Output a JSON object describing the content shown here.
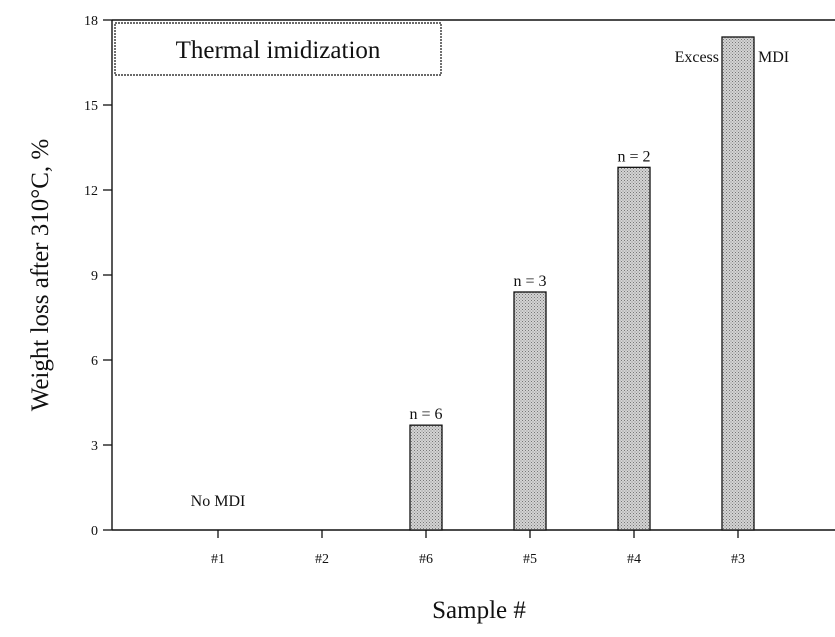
{
  "chart_data": {
    "type": "bar",
    "title": "Thermal imidization",
    "xlabel": "Sample #",
    "ylabel": "Weight loss after 310°C,  %",
    "categories": [
      "#1",
      "#2",
      "#6",
      "#5",
      "#4",
      "#3"
    ],
    "values": [
      0,
      0,
      3.7,
      8.4,
      12.8,
      17.4
    ],
    "ylim": [
      0,
      18
    ],
    "yticks": [
      "0",
      "3",
      "6",
      "9",
      "12",
      "15",
      "18"
    ],
    "grid": false,
    "bar_fill": "#c9c9c9",
    "annotations": [
      {
        "text": "No MDI",
        "category": "#1",
        "value": 0
      },
      {
        "text": "n = 6",
        "category": "#6",
        "value": 3.7
      },
      {
        "text": "n = 3",
        "category": "#5",
        "value": 8.4
      },
      {
        "text": "n = 2",
        "category": "#4",
        "value": 12.8
      },
      {
        "text": "Excess",
        "category": "#3",
        "value": 17.4,
        "side": "left"
      },
      {
        "text": "MDI",
        "category": "#3",
        "value": 17.4,
        "side": "right"
      }
    ]
  }
}
